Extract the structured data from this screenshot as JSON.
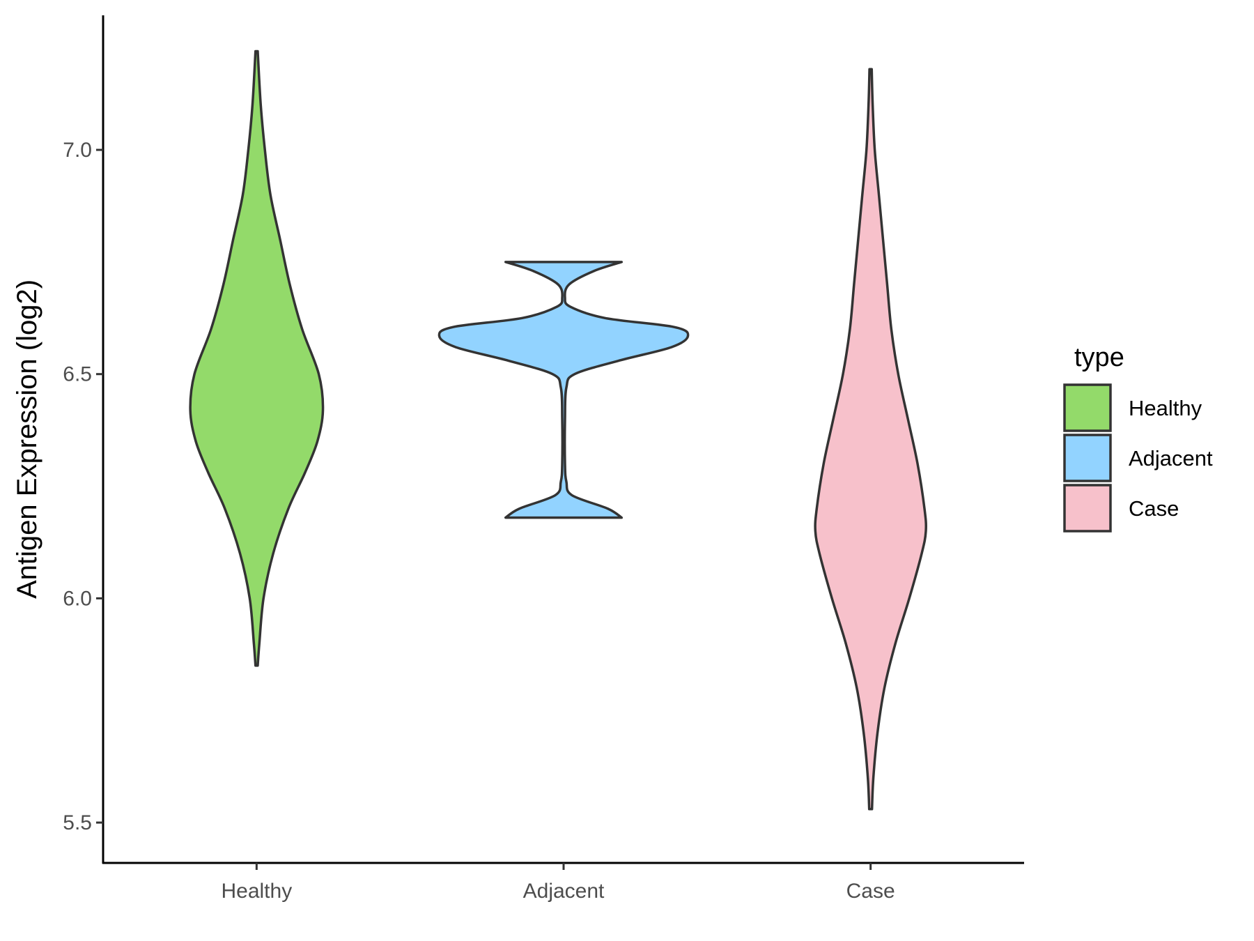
{
  "chart_data": {
    "type": "violin",
    "title": "",
    "xlabel": "",
    "ylabel": "Antigen Expression (log2)",
    "ylim": [
      5.41,
      7.3
    ],
    "y_ticks": [
      "5.5",
      "6.0",
      "6.5",
      "7.0"
    ],
    "y_tick_values": [
      5.5,
      6.0,
      6.5,
      7.0
    ],
    "categories": [
      "Healthy",
      "Adjacent",
      "Case"
    ],
    "grid": false,
    "legend": {
      "title": "type",
      "position": "right",
      "entries": [
        "Healthy",
        "Adjacent",
        "Case"
      ]
    },
    "colors": {
      "Healthy": "#93DA6A",
      "Adjacent": "#92D3FF",
      "Case": "#F7C1CB",
      "outline": "#333333",
      "axis": "#000000"
    },
    "series": [
      {
        "name": "Healthy",
        "min": 5.85,
        "max": 7.22,
        "profile": [
          [
            5.85,
            0.008
          ],
          [
            5.9,
            0.02
          ],
          [
            6.0,
            0.05
          ],
          [
            6.1,
            0.12
          ],
          [
            6.2,
            0.23
          ],
          [
            6.28,
            0.35
          ],
          [
            6.35,
            0.44
          ],
          [
            6.42,
            0.48
          ],
          [
            6.5,
            0.45
          ],
          [
            6.6,
            0.33
          ],
          [
            6.7,
            0.24
          ],
          [
            6.8,
            0.17
          ],
          [
            6.9,
            0.1
          ],
          [
            7.0,
            0.06
          ],
          [
            7.1,
            0.03
          ],
          [
            7.22,
            0.008
          ]
        ]
      },
      {
        "name": "Adjacent",
        "min": 6.18,
        "max": 6.75,
        "profile": [
          [
            6.18,
            0.42
          ],
          [
            6.2,
            0.32
          ],
          [
            6.23,
            0.06
          ],
          [
            6.26,
            0.02
          ],
          [
            6.3,
            0.01
          ],
          [
            6.4,
            0.01
          ],
          [
            6.47,
            0.02
          ],
          [
            6.5,
            0.08
          ],
          [
            6.53,
            0.4
          ],
          [
            6.56,
            0.78
          ],
          [
            6.585,
            0.9
          ],
          [
            6.605,
            0.8
          ],
          [
            6.625,
            0.3
          ],
          [
            6.65,
            0.05
          ],
          [
            6.67,
            0.01
          ],
          [
            6.7,
            0.04
          ],
          [
            6.73,
            0.22
          ],
          [
            6.75,
            0.42
          ]
        ]
      },
      {
        "name": "Case",
        "min": 5.53,
        "max": 7.18,
        "profile": [
          [
            5.53,
            0.01
          ],
          [
            5.6,
            0.02
          ],
          [
            5.7,
            0.05
          ],
          [
            5.8,
            0.1
          ],
          [
            5.9,
            0.18
          ],
          [
            6.0,
            0.28
          ],
          [
            6.1,
            0.37
          ],
          [
            6.15,
            0.4
          ],
          [
            6.2,
            0.39
          ],
          [
            6.3,
            0.34
          ],
          [
            6.4,
            0.27
          ],
          [
            6.5,
            0.2
          ],
          [
            6.6,
            0.15
          ],
          [
            6.7,
            0.12
          ],
          [
            6.8,
            0.09
          ],
          [
            6.9,
            0.06
          ],
          [
            7.0,
            0.03
          ],
          [
            7.1,
            0.015
          ],
          [
            7.18,
            0.008
          ]
        ]
      }
    ]
  }
}
